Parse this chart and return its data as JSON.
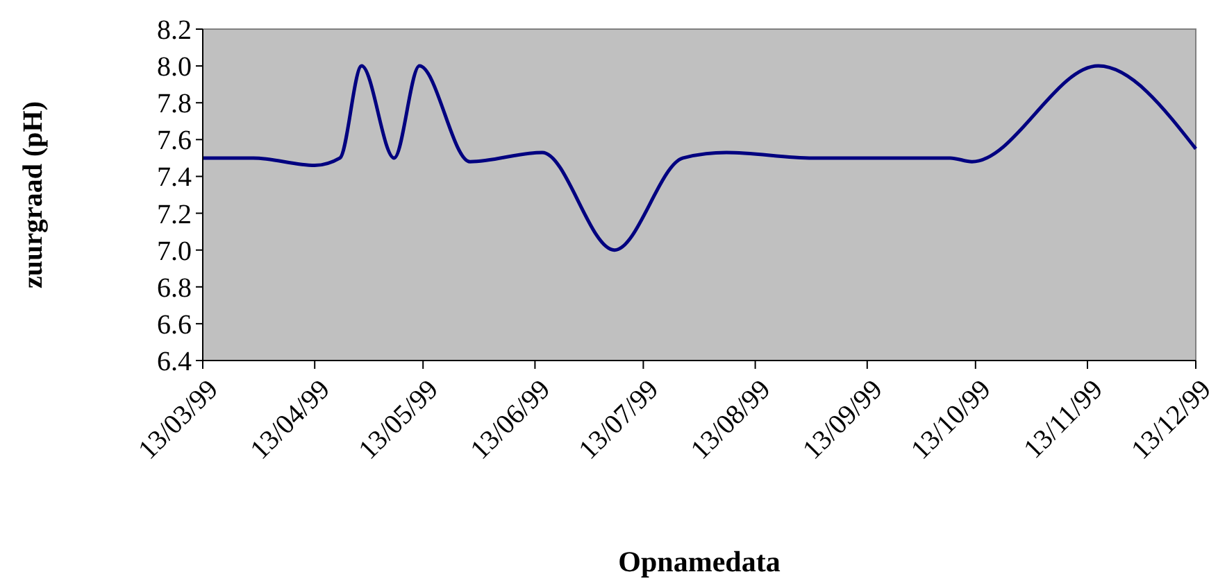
{
  "chart_data": {
    "type": "line",
    "xlabel": "Opnamedata",
    "ylabel": "zuurgraad (pH)",
    "x": [
      "1999-03-13",
      "1999-03-27",
      "1999-04-13",
      "1999-04-20",
      "1999-04-26",
      "1999-05-05",
      "1999-05-12",
      "1999-05-26",
      "1999-06-15",
      "1999-07-05",
      "1999-07-24",
      "1999-08-05",
      "1999-08-29",
      "1999-10-06",
      "1999-10-12",
      "1999-11-16",
      "1999-12-13"
    ],
    "series": [
      {
        "color": "#000080",
        "values": [
          7.5,
          7.5,
          7.46,
          7.5,
          8.0,
          7.5,
          8.0,
          7.48,
          7.53,
          7.0,
          7.5,
          7.53,
          7.5,
          7.5,
          7.48,
          8.0,
          7.55
        ]
      }
    ],
    "xlim": [
      "1999-03-13",
      "1999-12-13"
    ],
    "xticks": [
      {
        "value": "1999-03-13",
        "label": "13/03/99"
      },
      {
        "value": "1999-04-13",
        "label": "13/04/99"
      },
      {
        "value": "1999-05-13",
        "label": "13/05/99"
      },
      {
        "value": "1999-06-13",
        "label": "13/06/99"
      },
      {
        "value": "1999-07-13",
        "label": "13/07/99"
      },
      {
        "value": "1999-08-13",
        "label": "13/08/99"
      },
      {
        "value": "1999-09-13",
        "label": "13/09/99"
      },
      {
        "value": "1999-10-13",
        "label": "13/10/99"
      },
      {
        "value": "1999-11-13",
        "label": "13/11/99"
      },
      {
        "value": "1999-12-13",
        "label": "13/12/99"
      }
    ],
    "ylim": [
      6.4,
      8.2
    ],
    "yticks": [
      6.4,
      6.6,
      6.8,
      {
        "value": 7,
        "label": "7.0"
      },
      7.2,
      7.4,
      7.6,
      7.8,
      {
        "value": 8,
        "label": "8.0"
      },
      8.2
    ],
    "grid": false,
    "marker": "none",
    "line_style": "solid"
  }
}
